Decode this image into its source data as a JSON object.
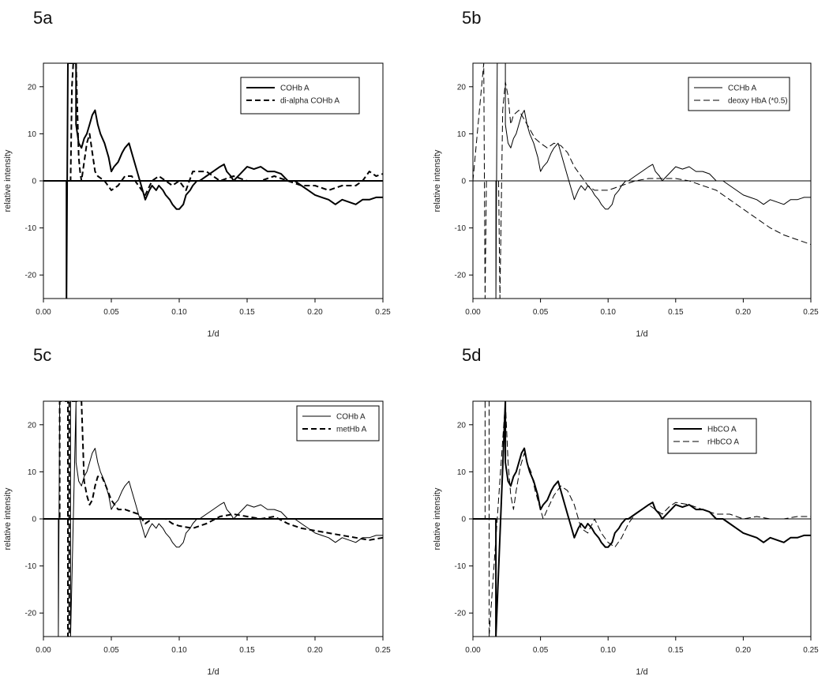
{
  "chart_data": [
    {
      "type": "line",
      "panel_label": "5a",
      "xlabel": "1/d",
      "ylabel": "relative intensity",
      "xlim": [
        0.0,
        0.25
      ],
      "ylim": [
        -25,
        25
      ],
      "xticks": [
        "0.00",
        "0.05",
        "0.10",
        "0.15",
        "0.20",
        "0.25"
      ],
      "yticks": [
        "-20",
        "-10",
        "0",
        "10",
        "20"
      ],
      "legend_position": "top-right",
      "series": [
        {
          "name": "COHb A",
          "style": "solid",
          "weight": "bold",
          "x": [
            0.0,
            0.01,
            0.01,
            0.017,
            0.017,
            0.018,
            0.018,
            0.024,
            0.024,
            0.026,
            0.028,
            0.03,
            0.032,
            0.034,
            0.036,
            0.038,
            0.04,
            0.042,
            0.045,
            0.048,
            0.05,
            0.052,
            0.055,
            0.058,
            0.06,
            0.063,
            0.065,
            0.068,
            0.07,
            0.073,
            0.075,
            0.078,
            0.08,
            0.083,
            0.085,
            0.088,
            0.09,
            0.093,
            0.095,
            0.098,
            0.1,
            0.103,
            0.105,
            0.108,
            0.11,
            0.113,
            0.115,
            0.12,
            0.125,
            0.13,
            0.133,
            0.135,
            0.138,
            0.14,
            0.145,
            0.15,
            0.155,
            0.16,
            0.165,
            0.17,
            0.175,
            0.18,
            0.185,
            0.19,
            0.195,
            0.2,
            0.205,
            0.21,
            0.215,
            0.22,
            0.225,
            0.23,
            0.235,
            0.24,
            0.245,
            0.25
          ],
          "y": [
            0,
            0,
            0,
            0,
            -25,
            25,
            25,
            25,
            12,
            8,
            7,
            9,
            10,
            12,
            14,
            15,
            12,
            10,
            8,
            5,
            2,
            3,
            4,
            6,
            7,
            8,
            6,
            3,
            1,
            -2,
            -4,
            -2,
            -1,
            -2,
            -1,
            -2,
            -3,
            -4,
            -5,
            -6,
            -6,
            -5,
            -3,
            -2,
            -1,
            0,
            0,
            1,
            2,
            3,
            3.5,
            2,
            1,
            0,
            1.5,
            3,
            2.5,
            3,
            2,
            2,
            1.5,
            0,
            0,
            -1,
            -2,
            -3,
            -3.5,
            -4,
            -5,
            -4,
            -4.5,
            -5,
            -4,
            -4,
            -3.5,
            -3.5
          ]
        },
        {
          "name": "di-alpha COHb A",
          "style": "dashed",
          "weight": "bold",
          "x": [
            0.0,
            0.02,
            0.021,
            0.022,
            0.024,
            0.026,
            0.027,
            0.028,
            0.03,
            0.032,
            0.034,
            0.036,
            0.038,
            0.04,
            0.045,
            0.05,
            0.055,
            0.06,
            0.065,
            0.07,
            0.075,
            0.08,
            0.085,
            0.09,
            0.095,
            0.1,
            0.105,
            0.11,
            0.12,
            0.13,
            0.14,
            0.15,
            0.16,
            0.17,
            0.18,
            0.19,
            0.2,
            0.21,
            0.22,
            0.23,
            0.235,
            0.24,
            0.245,
            0.25
          ],
          "y": [
            0,
            0,
            20,
            25,
            25,
            5,
            2,
            0,
            4,
            8,
            10,
            6,
            2,
            1,
            0,
            -2,
            -1,
            1,
            1,
            -1,
            -3,
            0,
            1,
            0,
            -1,
            0,
            -2,
            2,
            2,
            0,
            1,
            0,
            0,
            1,
            0,
            -1,
            -1,
            -2,
            -1,
            -1,
            0,
            2,
            1,
            1.5
          ]
        }
      ]
    },
    {
      "type": "line",
      "panel_label": "5b",
      "xlabel": "1/d",
      "ylabel": "relative intensity",
      "xlim": [
        0.0,
        0.25
      ],
      "ylim": [
        -25,
        25
      ],
      "xticks": [
        "0.00",
        "0.05",
        "0.10",
        "0.15",
        "0.20",
        "0.25"
      ],
      "yticks": [
        "-20",
        "-10",
        "0",
        "10",
        "20"
      ],
      "legend_position": "top-right",
      "series": [
        {
          "name": "CCHb A",
          "style": "solid",
          "weight": "thin",
          "x": [
            0.0,
            0.017,
            0.017,
            0.018,
            0.018,
            0.024,
            0.024,
            0.026,
            0.028,
            0.03,
            0.032,
            0.034,
            0.036,
            0.038,
            0.04,
            0.042,
            0.045,
            0.048,
            0.05,
            0.052,
            0.055,
            0.058,
            0.06,
            0.063,
            0.065,
            0.068,
            0.07,
            0.073,
            0.075,
            0.078,
            0.08,
            0.083,
            0.085,
            0.088,
            0.09,
            0.093,
            0.095,
            0.098,
            0.1,
            0.103,
            0.105,
            0.108,
            0.11,
            0.113,
            0.115,
            0.12,
            0.125,
            0.13,
            0.133,
            0.135,
            0.138,
            0.14,
            0.145,
            0.15,
            0.155,
            0.16,
            0.165,
            0.17,
            0.175,
            0.18,
            0.185,
            0.19,
            0.195,
            0.2,
            0.205,
            0.21,
            0.215,
            0.22,
            0.225,
            0.23,
            0.235,
            0.24,
            0.245,
            0.25
          ],
          "y": [
            0,
            0,
            -25,
            25,
            25,
            25,
            12,
            8,
            7,
            9,
            10,
            12,
            14,
            15,
            12,
            10,
            8,
            5,
            2,
            3,
            4,
            6,
            7,
            8,
            6,
            3,
            1,
            -2,
            -4,
            -2,
            -1,
            -2,
            -1,
            -2,
            -3,
            -4,
            -5,
            -6,
            -6,
            -5,
            -3,
            -2,
            -1,
            0,
            0,
            1,
            2,
            3,
            3.5,
            2,
            1,
            0,
            1.5,
            3,
            2.5,
            3,
            2,
            2,
            1.5,
            0,
            0,
            -1,
            -2,
            -3,
            -3.5,
            -4,
            -5,
            -4,
            -4.5,
            -5,
            -4,
            -4,
            -3.5,
            -3.5
          ]
        },
        {
          "name": "deoxy HbA (*0.5)",
          "style": "dashed",
          "weight": "thin",
          "x": [
            0.0,
            0.008,
            0.009,
            0.01,
            0.019,
            0.02,
            0.022,
            0.024,
            0.026,
            0.028,
            0.03,
            0.034,
            0.038,
            0.042,
            0.046,
            0.05,
            0.055,
            0.06,
            0.065,
            0.07,
            0.075,
            0.08,
            0.085,
            0.09,
            0.1,
            0.11,
            0.12,
            0.13,
            0.14,
            0.15,
            0.16,
            0.17,
            0.18,
            0.19,
            0.2,
            0.21,
            0.22,
            0.23,
            0.24,
            0.25
          ],
          "y": [
            0,
            25,
            -25,
            0,
            0,
            -25,
            15,
            21,
            18,
            12,
            14,
            15,
            13,
            11,
            9,
            8,
            7,
            8,
            7.5,
            6,
            3,
            1,
            -1,
            -2,
            -2,
            -1,
            0,
            0.5,
            0.5,
            0.5,
            0,
            -1,
            -2,
            -4,
            -6,
            -8,
            -10,
            -11.5,
            -12.5,
            -13.5
          ]
        }
      ]
    },
    {
      "type": "line",
      "panel_label": "5c",
      "xlabel": "1/d",
      "ylabel": "relative intensity",
      "xlim": [
        0.0,
        0.25
      ],
      "ylim": [
        -25,
        25
      ],
      "xticks": [
        "0.00",
        "0.05",
        "0.10",
        "0.15",
        "0.20",
        "0.25"
      ],
      "yticks": [
        "-20",
        "-10",
        "0",
        "10",
        "20"
      ],
      "legend_position": "top-right",
      "series": [
        {
          "name": "COHb A",
          "style": "solid",
          "weight": "thin",
          "x": [
            0.0,
            0.011,
            0.011,
            0.012,
            0.012,
            0.02,
            0.02,
            0.024,
            0.024,
            0.026,
            0.028,
            0.03,
            0.032,
            0.034,
            0.036,
            0.038,
            0.04,
            0.042,
            0.045,
            0.048,
            0.05,
            0.052,
            0.055,
            0.058,
            0.06,
            0.063,
            0.065,
            0.068,
            0.07,
            0.073,
            0.075,
            0.078,
            0.08,
            0.083,
            0.085,
            0.088,
            0.09,
            0.093,
            0.095,
            0.098,
            0.1,
            0.103,
            0.105,
            0.108,
            0.11,
            0.113,
            0.115,
            0.12,
            0.125,
            0.13,
            0.133,
            0.135,
            0.138,
            0.14,
            0.145,
            0.15,
            0.155,
            0.16,
            0.165,
            0.17,
            0.175,
            0.18,
            0.185,
            0.19,
            0.195,
            0.2,
            0.205,
            0.21,
            0.215,
            0.22,
            0.225,
            0.23,
            0.235,
            0.24,
            0.245,
            0.25
          ],
          "y": [
            0,
            0,
            -25,
            25,
            25,
            25,
            -25,
            25,
            12,
            8,
            7,
            9,
            10,
            12,
            14,
            15,
            12,
            10,
            8,
            5,
            2,
            3,
            4,
            6,
            7,
            8,
            6,
            3,
            1,
            -2,
            -4,
            -2,
            -1,
            -2,
            -1,
            -2,
            -3,
            -4,
            -5,
            -6,
            -6,
            -5,
            -3,
            -2,
            -1,
            0,
            0,
            1,
            2,
            3,
            3.5,
            2,
            1,
            0,
            1.5,
            3,
            2.5,
            3,
            2,
            2,
            1.5,
            0,
            0,
            -1,
            -2,
            -3,
            -3.5,
            -4,
            -5,
            -4,
            -4.5,
            -5,
            -4,
            -4,
            -3.5,
            -3.5
          ]
        },
        {
          "name": "metHb A",
          "style": "dashed",
          "weight": "bold",
          "x": [
            0.0,
            0.012,
            0.012,
            0.018,
            0.018,
            0.019,
            0.019,
            0.028,
            0.03,
            0.032,
            0.034,
            0.036,
            0.038,
            0.04,
            0.043,
            0.046,
            0.05,
            0.055,
            0.06,
            0.065,
            0.07,
            0.075,
            0.08,
            0.085,
            0.09,
            0.095,
            0.1,
            0.11,
            0.12,
            0.13,
            0.14,
            0.15,
            0.16,
            0.17,
            0.18,
            0.19,
            0.2,
            0.21,
            0.22,
            0.23,
            0.24,
            0.25
          ],
          "y": [
            0,
            0,
            25,
            25,
            -25,
            -25,
            25,
            25,
            8,
            5,
            3,
            4,
            7,
            9,
            9,
            7,
            4,
            2,
            2,
            1.5,
            1,
            -1,
            0,
            0,
            0,
            -1,
            -1.5,
            -2,
            -1,
            0.5,
            1,
            0.5,
            0,
            0.5,
            -1,
            -2,
            -2.5,
            -3,
            -3.5,
            -4,
            -4.5,
            -4
          ]
        }
      ]
    },
    {
      "type": "line",
      "panel_label": "5d",
      "xlabel": "1/d",
      "ylabel": "relative intensity",
      "xlim": [
        0.0,
        0.25
      ],
      "ylim": [
        -25,
        25
      ],
      "xticks": [
        "0.00",
        "0.05",
        "0.10",
        "0.15",
        "0.20",
        "0.25"
      ],
      "yticks": [
        "-20",
        "-10",
        "0",
        "10",
        "20"
      ],
      "legend_position": "top-right",
      "series": [
        {
          "name": "HbCO A",
          "style": "solid",
          "weight": "bold",
          "x": [
            0.0,
            0.017,
            0.017,
            0.024,
            0.024,
            0.026,
            0.028,
            0.03,
            0.032,
            0.034,
            0.036,
            0.038,
            0.04,
            0.042,
            0.045,
            0.048,
            0.05,
            0.052,
            0.055,
            0.058,
            0.06,
            0.063,
            0.065,
            0.068,
            0.07,
            0.073,
            0.075,
            0.078,
            0.08,
            0.083,
            0.085,
            0.088,
            0.09,
            0.093,
            0.095,
            0.098,
            0.1,
            0.103,
            0.105,
            0.108,
            0.11,
            0.113,
            0.115,
            0.12,
            0.125,
            0.13,
            0.133,
            0.135,
            0.138,
            0.14,
            0.145,
            0.15,
            0.155,
            0.16,
            0.165,
            0.17,
            0.175,
            0.18,
            0.185,
            0.19,
            0.195,
            0.2,
            0.205,
            0.21,
            0.215,
            0.22,
            0.225,
            0.23,
            0.235,
            0.24,
            0.245,
            0.25
          ],
          "y": [
            0,
            0,
            -25,
            25,
            12,
            8,
            7,
            9,
            10,
            12,
            14,
            15,
            12,
            10,
            8,
            5,
            2,
            3,
            4,
            6,
            7,
            8,
            6,
            3,
            1,
            -2,
            -4,
            -2,
            -1,
            -2,
            -1,
            -2,
            -3,
            -4,
            -5,
            -6,
            -6,
            -5,
            -3,
            -2,
            -1,
            0,
            0,
            1,
            2,
            3,
            3.5,
            2,
            1,
            0,
            1.5,
            3,
            2.5,
            3,
            2,
            2,
            1.5,
            0,
            0,
            -1,
            -2,
            -3,
            -3.5,
            -4,
            -5,
            -4,
            -4.5,
            -5,
            -4,
            -4,
            -3.5,
            -3.5
          ]
        },
        {
          "name": "rHbCO A",
          "style": "dashed",
          "weight": "thin",
          "x": [
            0.0,
            0.009,
            0.009,
            0.012,
            0.012,
            0.024,
            0.026,
            0.028,
            0.03,
            0.032,
            0.035,
            0.038,
            0.04,
            0.043,
            0.046,
            0.05,
            0.052,
            0.055,
            0.06,
            0.065,
            0.07,
            0.075,
            0.08,
            0.085,
            0.09,
            0.095,
            0.1,
            0.105,
            0.11,
            0.115,
            0.12,
            0.13,
            0.135,
            0.14,
            0.145,
            0.15,
            0.16,
            0.17,
            0.18,
            0.19,
            0.2,
            0.21,
            0.22,
            0.23,
            0.24,
            0.25
          ],
          "y": [
            0,
            0,
            25,
            25,
            -25,
            25,
            12,
            5,
            2,
            6,
            11,
            14,
            12,
            10,
            6,
            2,
            0,
            2,
            5,
            7,
            6,
            3,
            -2,
            -3,
            0,
            -3,
            -5,
            -6,
            -4,
            -1,
            1,
            3,
            2,
            1,
            2.5,
            3.5,
            3,
            2,
            1,
            1,
            0,
            0.5,
            0,
            0,
            0.5,
            0.5
          ]
        }
      ]
    }
  ]
}
